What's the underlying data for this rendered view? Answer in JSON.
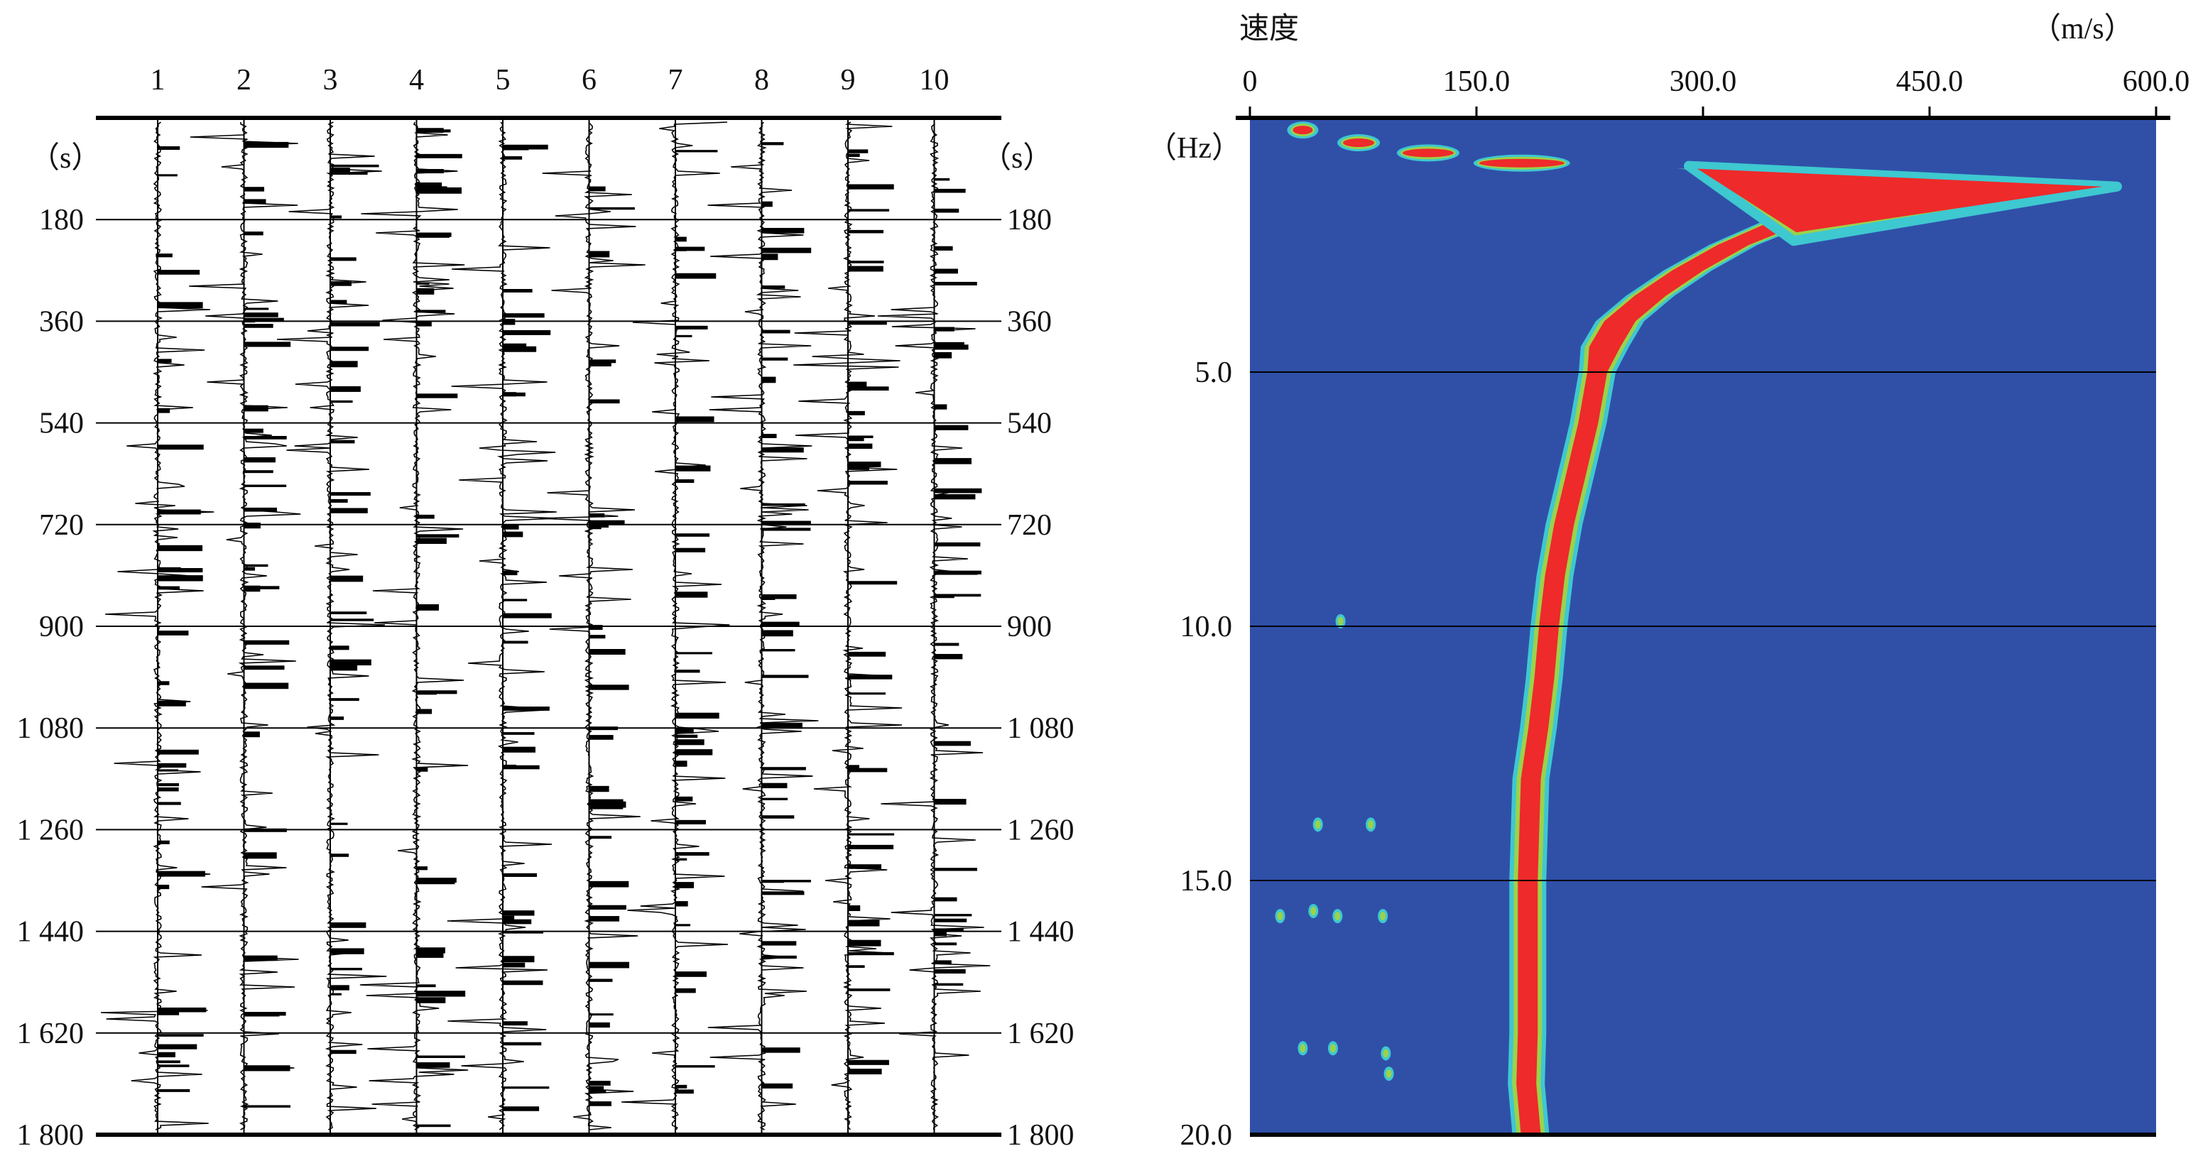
{
  "chart_data": [
    {
      "type": "line",
      "panel": "left",
      "subtype": "seismic-traces",
      "traces": [
        "1",
        "2",
        "3",
        "4",
        "5",
        "6",
        "7",
        "8",
        "9",
        "10"
      ],
      "time_unit_left": "（s）",
      "time_unit_right": "（s）",
      "time_ticks": [
        "180",
        "360",
        "540",
        "720",
        "900",
        "1 080",
        "1 260",
        "1 440",
        "1 620",
        "1 800"
      ],
      "time_values": [
        180,
        360,
        540,
        720,
        900,
        1080,
        1260,
        1440,
        1620,
        1800
      ],
      "ylim": [
        0,
        1800
      ],
      "grid": true
    },
    {
      "type": "heatmap",
      "panel": "right",
      "subtitle": "速度",
      "x_unit": "（m/s）",
      "y_unit": "（Hz）",
      "x_ticks": [
        "0",
        "150.0",
        "300.0",
        "450.0",
        "600.0"
      ],
      "x_values": [
        0,
        150,
        300,
        450,
        600
      ],
      "xlim": [
        0,
        600
      ],
      "y_ticks": [
        "5.0",
        "10.0",
        "15.0",
        "20.0"
      ],
      "y_values": [
        5,
        10,
        15,
        20
      ],
      "ylim": [
        0,
        20
      ],
      "grid": true,
      "colors": {
        "background": "#3050a8",
        "high": "#ee2a2a",
        "mid": "#9bd24a",
        "edge": "#3ec8d0"
      },
      "dispersion_curve": [
        {
          "frequency": 0.1,
          "velocity": 35
        },
        {
          "frequency": 0.35,
          "velocity": 72
        },
        {
          "frequency": 0.55,
          "velocity": 118
        },
        {
          "frequency": 0.75,
          "velocity": 180
        },
        {
          "frequency": 1.0,
          "velocity": 300
        },
        {
          "frequency": 1.15,
          "velocity": 380
        },
        {
          "frequency": 1.35,
          "velocity": 560
        },
        {
          "frequency": 1.7,
          "velocity": 420
        },
        {
          "frequency": 2.0,
          "velocity": 360
        },
        {
          "frequency": 2.5,
          "velocity": 320
        },
        {
          "frequency": 3.0,
          "velocity": 290
        },
        {
          "frequency": 3.5,
          "velocity": 265
        },
        {
          "frequency": 4.0,
          "velocity": 245
        },
        {
          "frequency": 4.5,
          "velocity": 235
        },
        {
          "frequency": 5.0,
          "velocity": 230
        },
        {
          "frequency": 6.0,
          "velocity": 224
        },
        {
          "frequency": 7.0,
          "velocity": 216
        },
        {
          "frequency": 8.0,
          "velocity": 208
        },
        {
          "frequency": 9.0,
          "velocity": 202
        },
        {
          "frequency": 10.0,
          "velocity": 198
        },
        {
          "frequency": 11.0,
          "velocity": 195
        },
        {
          "frequency": 12.0,
          "velocity": 191
        },
        {
          "frequency": 13.0,
          "velocity": 186
        },
        {
          "frequency": 14.0,
          "velocity": 185
        },
        {
          "frequency": 15.0,
          "velocity": 184
        },
        {
          "frequency": 16.0,
          "velocity": 184
        },
        {
          "frequency": 17.0,
          "velocity": 184
        },
        {
          "frequency": 18.0,
          "velocity": 184
        },
        {
          "frequency": 19.0,
          "velocity": 183
        },
        {
          "frequency": 20.0,
          "velocity": 186
        }
      ]
    }
  ]
}
